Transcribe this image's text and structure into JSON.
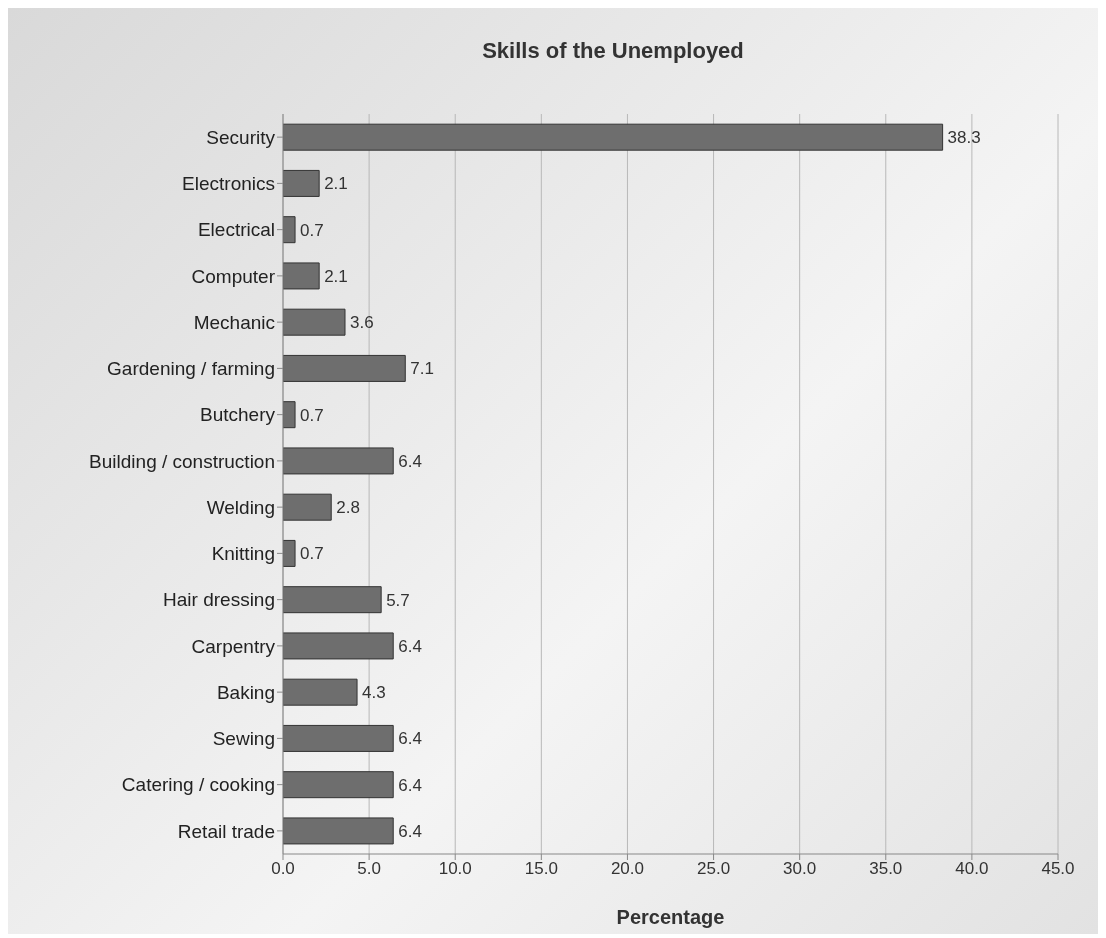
{
  "chart_data": {
    "type": "bar",
    "orientation": "horizontal",
    "title": "Skills of the Unemployed",
    "xlabel": "Percentage",
    "categories": [
      "Security",
      "Electronics",
      "Electrical",
      "Computer",
      "Mechanic",
      "Gardening / farming",
      "Butchery",
      "Building / construction",
      "Welding",
      "Knitting",
      "Hair dressing",
      "Carpentry",
      "Baking",
      "Sewing",
      "Catering / cooking",
      "Retail trade"
    ],
    "values": [
      38.3,
      2.1,
      0.7,
      2.1,
      3.6,
      7.1,
      0.7,
      6.4,
      2.8,
      0.7,
      5.7,
      6.4,
      4.3,
      6.4,
      6.4,
      6.4
    ],
    "color": "#6e6e6e",
    "xlim": [
      0,
      45
    ],
    "xticks": [
      {
        "value": 0,
        "label": "0.0"
      },
      {
        "value": 5,
        "label": "5.0"
      },
      {
        "value": 10,
        "label": "10.0"
      },
      {
        "value": 15,
        "label": "15.0"
      },
      {
        "value": 20,
        "label": "20.0"
      },
      {
        "value": 25,
        "label": "25.0"
      },
      {
        "value": 30,
        "label": "30.0"
      },
      {
        "value": 35,
        "label": "35.0"
      },
      {
        "value": 40,
        "label": "40.0"
      },
      {
        "value": 45,
        "label": "45.0"
      }
    ],
    "grid": "x",
    "data_labels": true
  }
}
